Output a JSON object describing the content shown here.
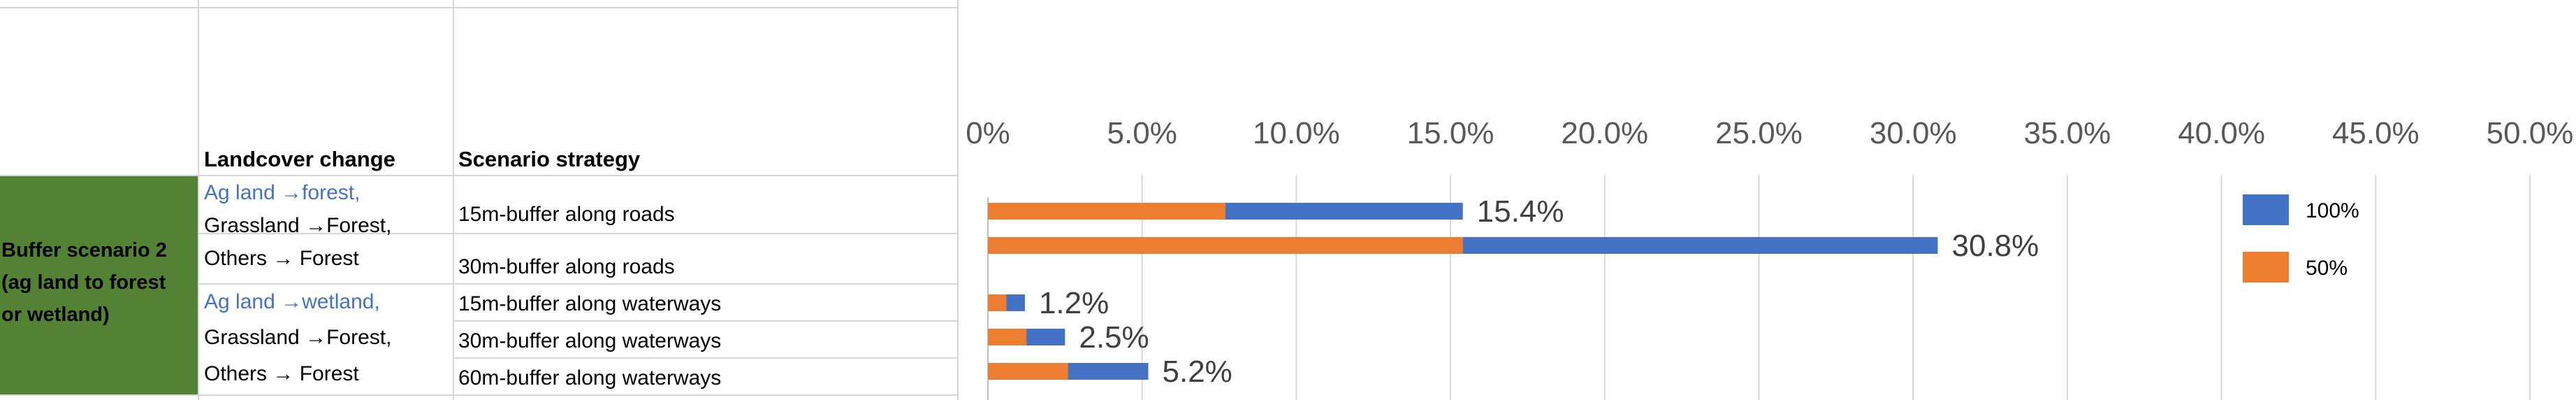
{
  "table": {
    "headers": {
      "landcover": "Landcover change",
      "strategy": "Scenario strategy"
    },
    "scenario_label": [
      "Buffer scenario 2",
      "(ag land to forest",
      "or wetland)"
    ],
    "groups": [
      {
        "change_lines": [
          {
            "text": "Ag land →forest,",
            "accent": true
          },
          {
            "text": "Grassland →Forest,",
            "accent": false
          },
          {
            "text": "Others → Forest",
            "accent": false
          }
        ],
        "strategies": [
          "15m-buffer along roads",
          "30m-buffer along roads"
        ]
      },
      {
        "change_lines": [
          {
            "text": "Ag land →wetland,",
            "accent": true
          },
          {
            "text": "Grassland →Forest,",
            "accent": false
          },
          {
            "text": "Others → Forest",
            "accent": false
          }
        ],
        "strategies": [
          "15m-buffer along waterways",
          "30m-buffer along waterways",
          "60m-buffer along waterways"
        ]
      }
    ]
  },
  "chart_data": {
    "type": "bar",
    "orientation": "horizontal",
    "stacked": false,
    "overlapped": true,
    "x_ticks": [
      "0%",
      "5.0%",
      "10.0%",
      "15.0%",
      "20.0%",
      "25.0%",
      "30.0%",
      "35.0%",
      "40.0%",
      "45.0%",
      "50.0%"
    ],
    "xlim": [
      0,
      50
    ],
    "x_axis_position": "top",
    "grid": "vertical",
    "legend_position": "right",
    "categories": [
      "15m-buffer along roads",
      "30m-buffer along roads",
      "15m-buffer along waterways",
      "30m-buffer along waterways",
      "60m-buffer along waterways"
    ],
    "series": [
      {
        "name": "100%",
        "color": "#4472c4",
        "values": [
          15.4,
          30.8,
          1.2,
          2.5,
          5.2
        ]
      },
      {
        "name": "50%",
        "color": "#ed7d31",
        "values": [
          7.7,
          15.4,
          0.6,
          1.25,
          2.6
        ]
      }
    ],
    "data_labels": [
      "15.4%",
      "30.8%",
      "1.2%",
      "2.5%",
      "5.2%"
    ]
  }
}
